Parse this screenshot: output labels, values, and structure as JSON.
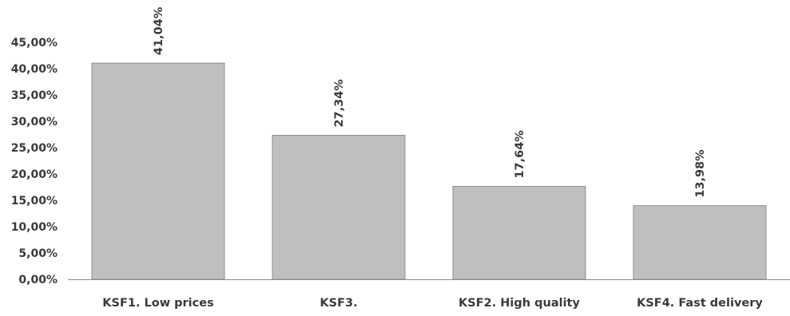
{
  "chart_data": {
    "type": "bar",
    "categories": [
      "KSF1. Low prices",
      "KSF3.",
      "KSF2. High quality",
      "KSF4. Fast delivery"
    ],
    "values": [
      41.04,
      27.34,
      17.64,
      13.98
    ],
    "data_labels": [
      "41,04%",
      "27,34%",
      "17,64%",
      "13,98%"
    ],
    "ylim": [
      0,
      45
    ],
    "yticks": [
      0,
      5,
      10,
      15,
      20,
      25,
      30,
      35,
      40,
      45
    ],
    "ytick_labels": [
      "0,00%",
      "5,00%",
      "10,00%",
      "15,00%",
      "20,00%",
      "25,00%",
      "30,00%",
      "35,00%",
      "40,00%",
      "45,00%"
    ],
    "grid": false,
    "legend": "none",
    "colors": {
      "bar_fill": "#bfbfbf",
      "bar_stroke": "#8c8c8c",
      "axis": "#8c8c8c",
      "text": "#3a3a3a"
    }
  }
}
